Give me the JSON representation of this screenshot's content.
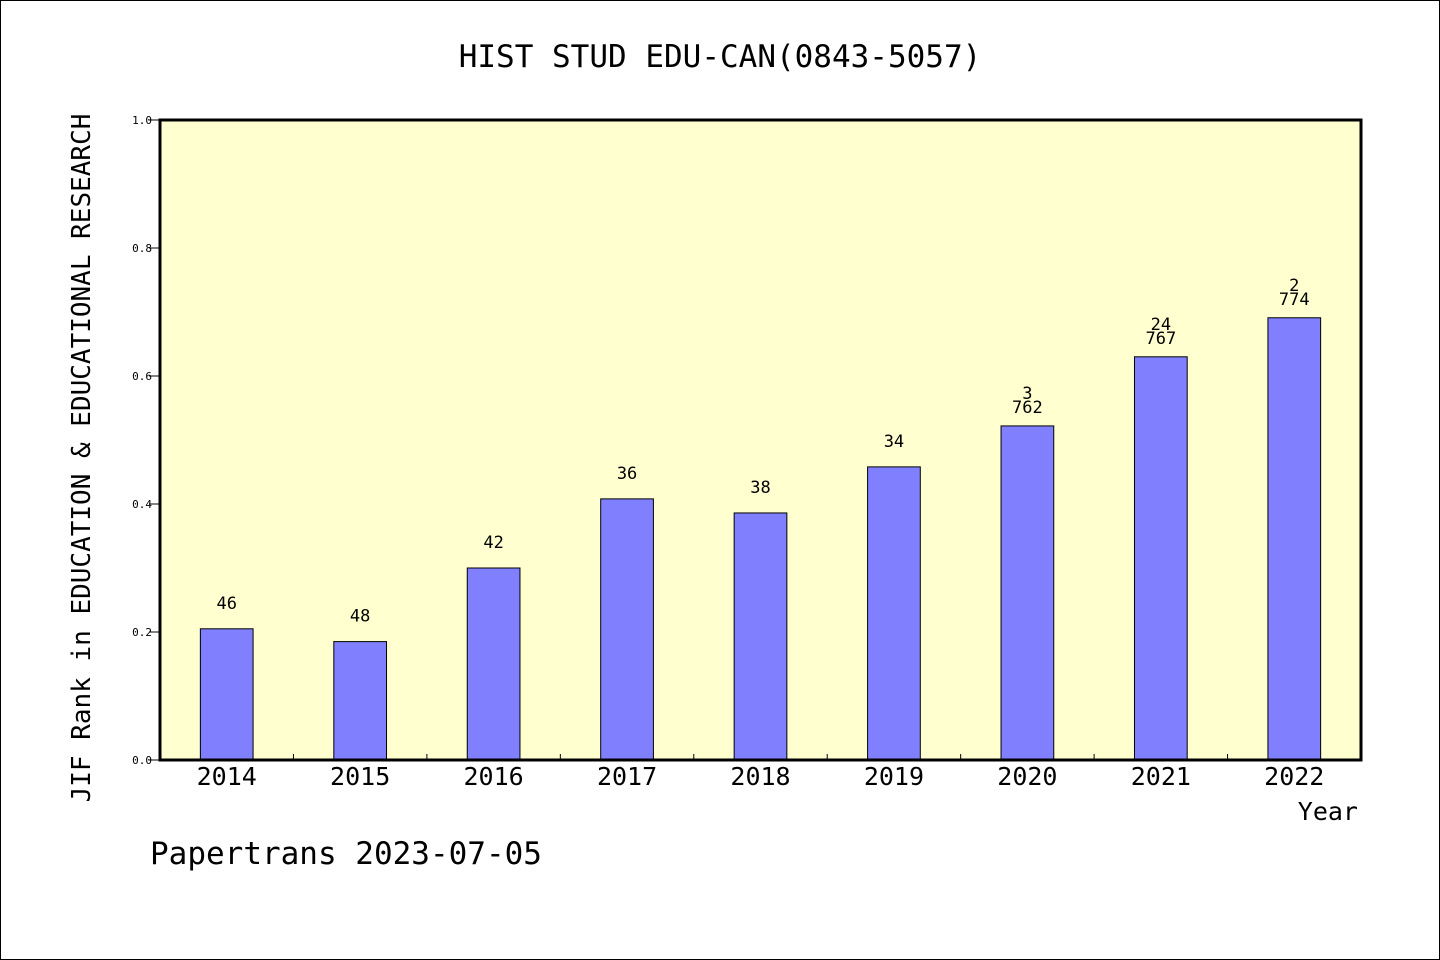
{
  "chart_data": {
    "type": "bar",
    "title": "HIST STUD EDU-CAN(0843-5057)",
    "xlabel": "Year",
    "ylabel": "JIF Rank in EDUCATION & EDUCATIONAL RESEARCH",
    "ylim": [
      0,
      1.0
    ],
    "yticks": [
      "0.0",
      "0.2",
      "0.4",
      "0.6",
      "0.8",
      "1.0"
    ],
    "categories": [
      "2014",
      "2015",
      "2016",
      "2017",
      "2018",
      "2019",
      "2020",
      "2021",
      "2022"
    ],
    "values": [
      0.205,
      0.185,
      0.3,
      0.408,
      0.386,
      0.458,
      0.522,
      0.63,
      0.691
    ],
    "labels": [
      [
        "46"
      ],
      [
        "48"
      ],
      [
        "42"
      ],
      [
        "36"
      ],
      [
        "38"
      ],
      [
        "34"
      ],
      [
        "3",
        "762"
      ],
      [
        "24",
        "767"
      ],
      [
        "2",
        "774"
      ]
    ],
    "grid": false,
    "colors": {
      "plot_bg": "#ffffd0",
      "bar": "#8080ff",
      "bar_edge": "#000000"
    }
  },
  "footer": "Papertrans 2023-07-05"
}
